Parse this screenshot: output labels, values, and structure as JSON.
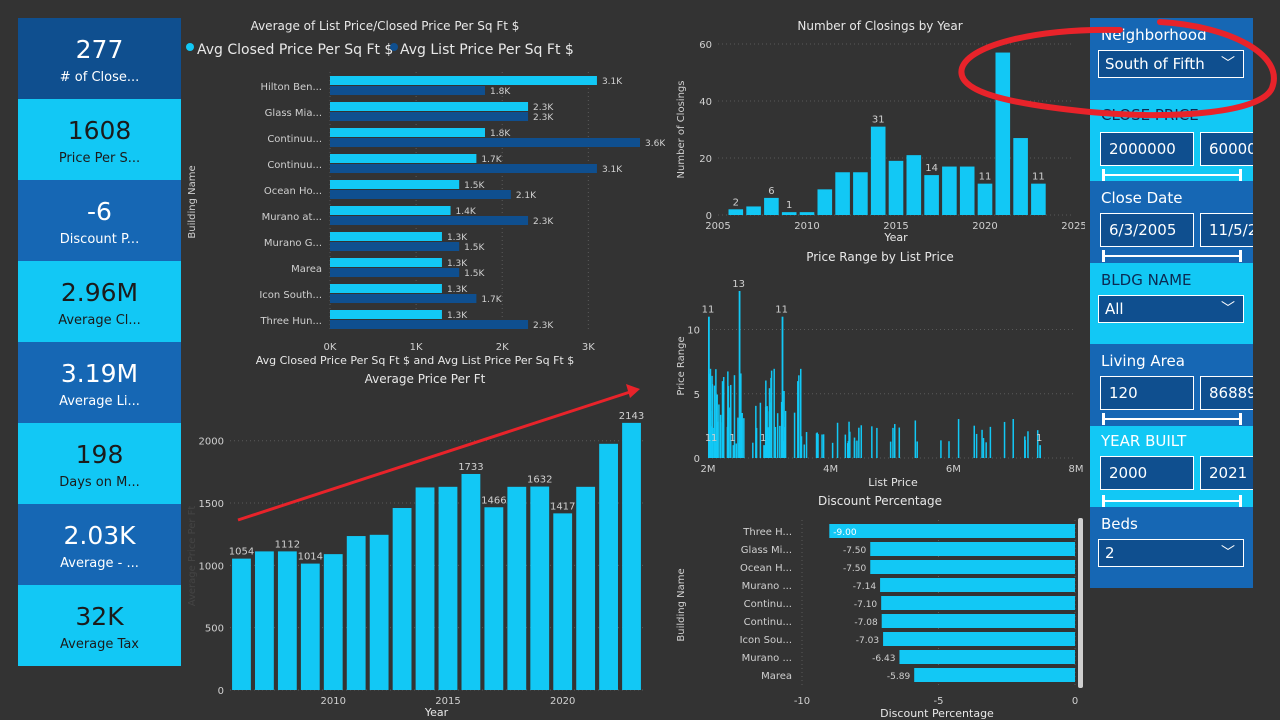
{
  "kpis": [
    {
      "value": "277",
      "label": "# of Close..."
    },
    {
      "value": "1608",
      "label": "Price Per S..."
    },
    {
      "value": "-6",
      "label": "Discount P..."
    },
    {
      "value": "2.96M",
      "label": "Average Cl..."
    },
    {
      "value": "3.19M",
      "label": "Average Li..."
    },
    {
      "value": "198",
      "label": "Days on M..."
    },
    {
      "value": "2.03K",
      "label": "Average - ..."
    },
    {
      "value": "32K",
      "label": "Average Tax"
    }
  ],
  "filters": {
    "neighborhood_label": "Neighborhood",
    "neighborhood_value": "South of Fifth",
    "close_price_label": "CLOSE PRICE",
    "close_price_min": "2000000",
    "close_price_max": "60000",
    "close_date_label": "Close Date",
    "close_date_min": "6/3/2005",
    "close_date_max": "11/5/2",
    "bldg_name_label": "BLDG NAME",
    "bldg_name_value": "All",
    "living_area_label": "Living Area",
    "living_area_min": "120",
    "living_area_max": "86889",
    "year_built_label": "YEAR BUILT",
    "year_built_min": "2000",
    "year_built_max": "2021",
    "beds_label": "Beds",
    "beds_value": "2"
  },
  "colors": {
    "light": "#12c8f5",
    "dark": "#0f4f8f",
    "annotation": "#e8232a"
  },
  "chart_data": [
    {
      "id": "list_closed",
      "type": "bar",
      "orientation": "horizontal",
      "title": "Average of List Price/Closed Price Per Sq Ft $",
      "xlabel": "Avg Closed Price Per Sq Ft $ and Avg List Price Per Sq Ft $",
      "ylabel": "Building Name",
      "categories": [
        "Hilton Ben...",
        "Glass Mia...",
        "Continuu...",
        "Continuu...",
        "Ocean Ho...",
        "Murano at...",
        "Murano G...",
        "Marea",
        "Icon South...",
        "Three Hun..."
      ],
      "series": [
        {
          "name": "Avg Closed Price Per Sq Ft $",
          "values": [
            3100,
            2300,
            1800,
            1700,
            1500,
            1400,
            1300,
            1300,
            1300,
            1300
          ],
          "labels": [
            "3.1K",
            "2.3K",
            "1.8K",
            "1.7K",
            "1.5K",
            "1.4K",
            "1.3K",
            "1.3K",
            "1.3K",
            "1.3K"
          ]
        },
        {
          "name": "Avg List Price Per Sq Ft $",
          "values": [
            1800,
            2300,
            3600,
            3100,
            2100,
            2300,
            1500,
            1500,
            1700,
            2300
          ],
          "labels": [
            "1.8K",
            "2.3K",
            "3.6K",
            "3.1K",
            "2.1K",
            "2.3K",
            "1.5K",
            "1.5K",
            "1.7K",
            "2.3K"
          ]
        }
      ],
      "xticks": [
        "0K",
        "1K",
        "2K",
        "3K"
      ],
      "xlim": [
        0,
        3600
      ],
      "legend": "top"
    },
    {
      "id": "avg_price_ft",
      "type": "bar",
      "title": "Average Price Per Ft",
      "xlabel": "Year",
      "ylabel": "Average Price Per Ft",
      "x": [
        2006,
        2007,
        2008,
        2009,
        2010,
        2011,
        2012,
        2013,
        2014,
        2015,
        2016,
        2017,
        2018,
        2019,
        2020,
        2021,
        2022,
        2023
      ],
      "values": [
        1054,
        1112,
        1112,
        1014,
        1090,
        1235,
        1245,
        1460,
        1625,
        1630,
        1733,
        1466,
        1630,
        1632,
        1417,
        1630,
        1975,
        2143
      ],
      "data_labels": {
        "2006": "1054",
        "2008": "1112",
        "2009": "1014",
        "2016": "1733",
        "2017": "1466",
        "2019": "1632",
        "2020": "1417",
        "2023": "2143"
      },
      "yticks": [
        0,
        500,
        1000,
        1500,
        2000
      ],
      "xticks": [
        2010,
        2015,
        2020
      ],
      "ylim": [
        0,
        2150
      ]
    },
    {
      "id": "closings_by_year",
      "type": "bar",
      "title": "Number of Closings by Year",
      "xlabel": "Year",
      "ylabel": "Number of Closings",
      "x": [
        2006,
        2007,
        2008,
        2009,
        2010,
        2011,
        2012,
        2013,
        2014,
        2015,
        2016,
        2017,
        2018,
        2019,
        2020,
        2021,
        2022,
        2023
      ],
      "values": [
        2,
        3,
        6,
        1,
        1,
        9,
        15,
        15,
        31,
        19,
        21,
        14,
        17,
        17,
        11,
        57,
        27,
        11
      ],
      "data_labels": {
        "2006": "2",
        "2008": "6",
        "2009": "1",
        "2014": "31",
        "2017": "14",
        "2020": "11",
        "2023": "11"
      },
      "yticks": [
        0,
        20,
        40,
        60
      ],
      "xticks": [
        2005,
        2010,
        2015,
        2020,
        2025
      ],
      "ylim": [
        0,
        60
      ],
      "xlim": [
        2005,
        2025
      ]
    },
    {
      "id": "price_range",
      "type": "bar",
      "title": "Price Range by List Price",
      "xlabel": "List Price",
      "ylabel": "Price Range",
      "xticks": [
        "2M",
        "4M",
        "6M",
        "8M"
      ],
      "yticks": [
        0,
        5,
        10
      ],
      "xlim": [
        2000000,
        8000000
      ],
      "ylim": [
        0,
        13
      ],
      "annotated_points": [
        {
          "x": 2000000,
          "y": 11,
          "label": "11"
        },
        {
          "x": 2500000,
          "y": 13,
          "label": "13"
        },
        {
          "x": 3200000,
          "y": 11,
          "label": "11"
        },
        {
          "x": 2000000,
          "y": 1,
          "label": "1"
        },
        {
          "x": 2100000,
          "y": 1,
          "label": "1"
        },
        {
          "x": 2400000,
          "y": 1,
          "label": "1"
        },
        {
          "x": 2900000,
          "y": 1,
          "label": "1"
        },
        {
          "x": 7400000,
          "y": 1,
          "label": "1"
        }
      ]
    },
    {
      "id": "discount_pct",
      "type": "bar",
      "orientation": "horizontal",
      "title": "Discount Percentage",
      "xlabel": "Discount Percentage",
      "ylabel": "Building Name",
      "categories": [
        "Three H...",
        "Glass Mi...",
        "Ocean H...",
        "Murano ...",
        "Continu...",
        "Continu...",
        "Icon Sou...",
        "Murano ...",
        "Marea"
      ],
      "values": [
        -9.0,
        -7.5,
        -7.5,
        -7.14,
        -7.1,
        -7.08,
        -7.03,
        -6.43,
        -5.89
      ],
      "labels": [
        "-9.00",
        "-7.50",
        "-7.50",
        "-7.14",
        "-7.10",
        "-7.08",
        "-7.03",
        "-6.43",
        "-5.89"
      ],
      "xticks": [
        -10,
        -5,
        0
      ],
      "xlim": [
        -10,
        0
      ]
    }
  ]
}
